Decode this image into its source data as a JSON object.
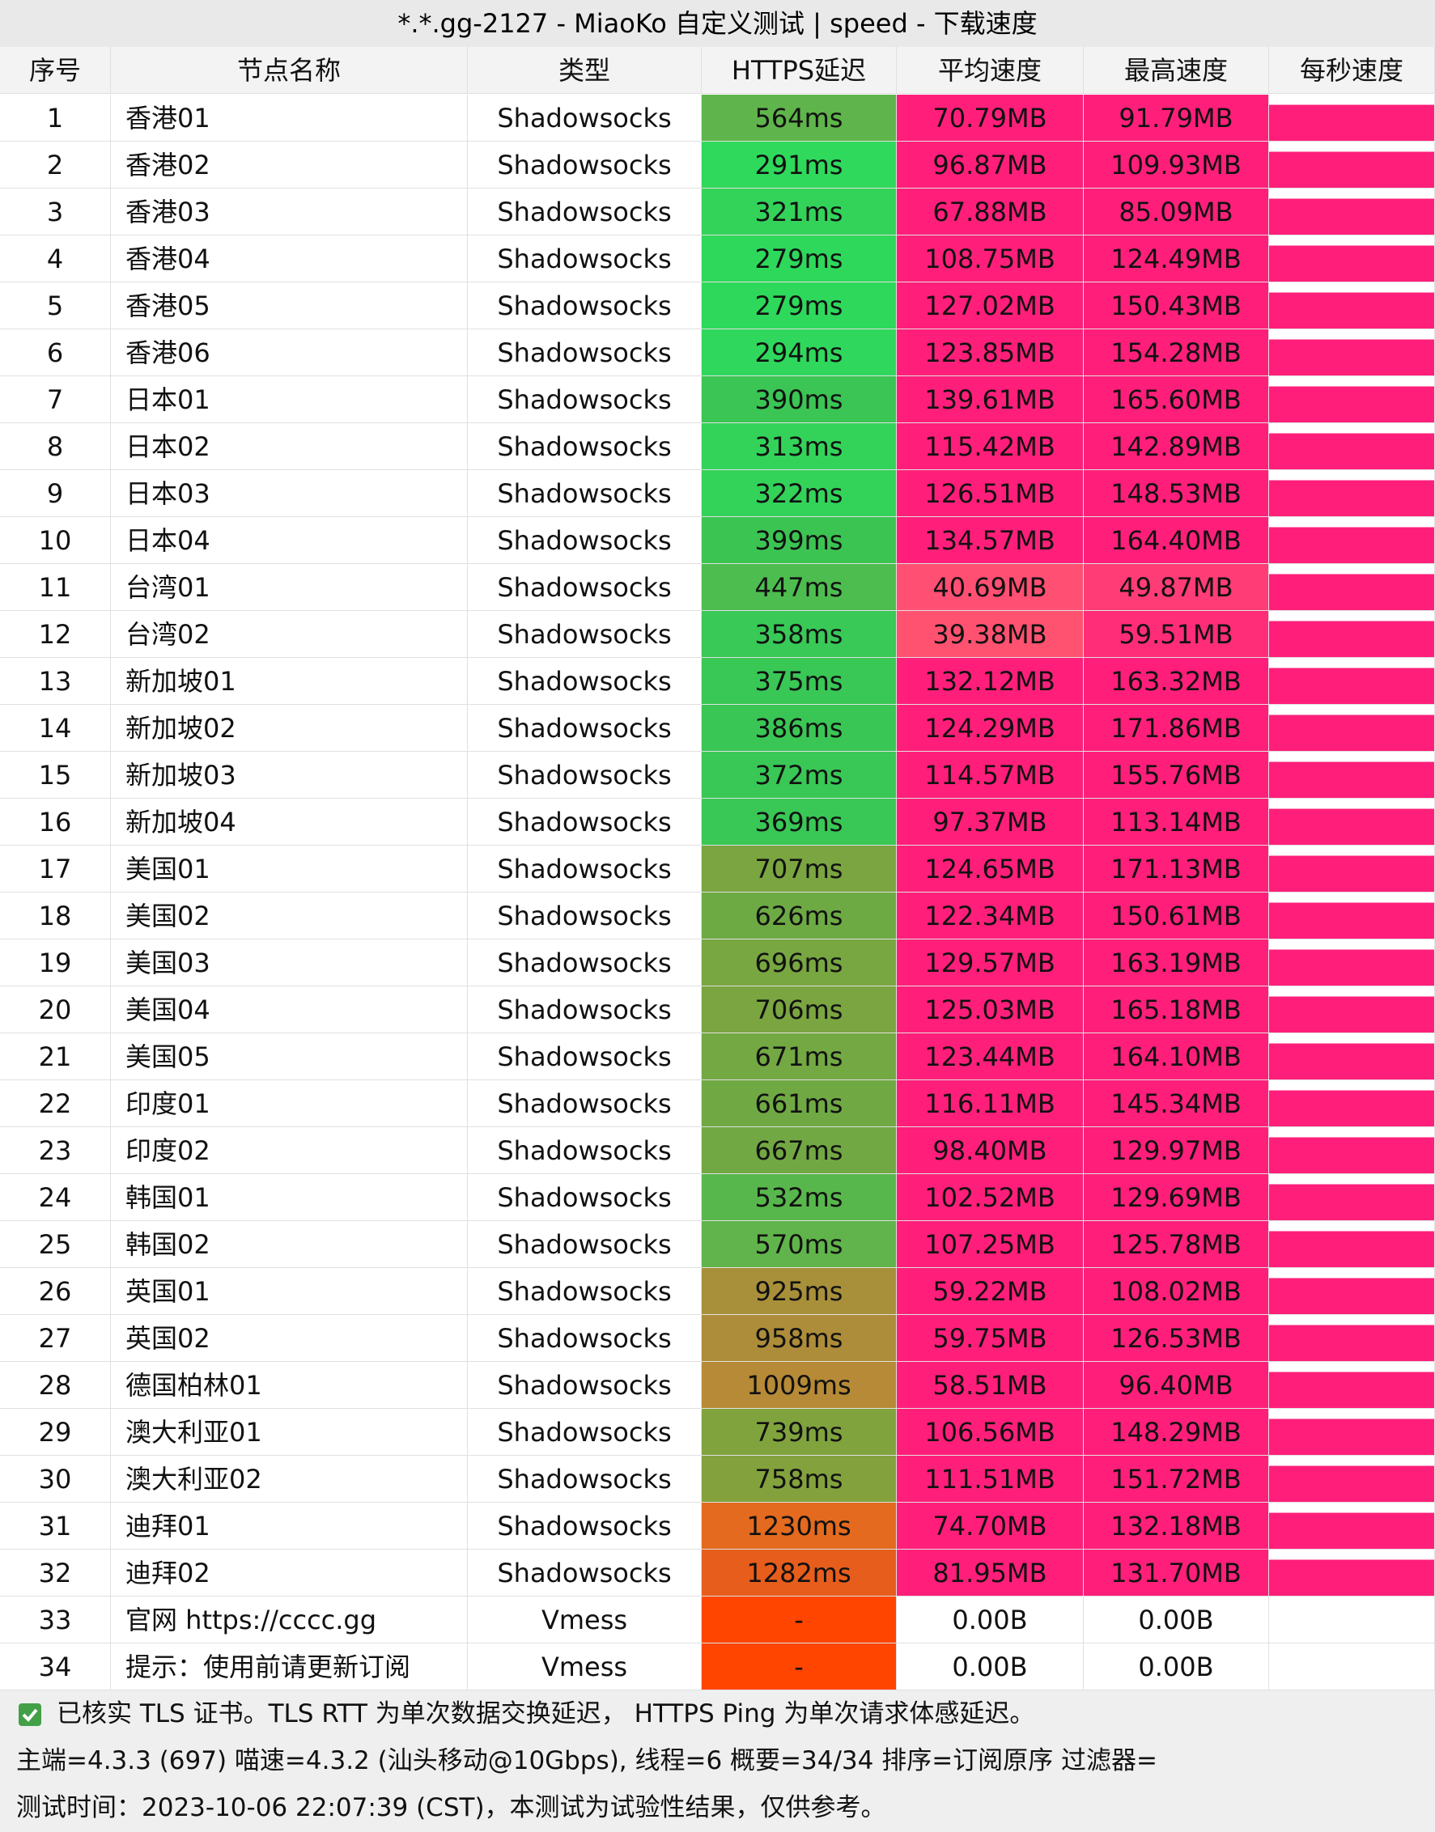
{
  "header": {
    "title": "*.*.gg-2127 - MiaoKo 自定义测试 | speed - 下载速度"
  },
  "table": {
    "columns": [
      "序号",
      "节点名称",
      "类型",
      "HTTPS延迟",
      "平均速度",
      "最高速度",
      "每秒速度"
    ],
    "rows": [
      [
        1,
        "香港01",
        "Shadowsocks",
        "564ms",
        "70.79MB",
        "91.79MB"
      ],
      [
        2,
        "香港02",
        "Shadowsocks",
        "291ms",
        "96.87MB",
        "109.93MB"
      ],
      [
        3,
        "香港03",
        "Shadowsocks",
        "321ms",
        "67.88MB",
        "85.09MB"
      ],
      [
        4,
        "香港04",
        "Shadowsocks",
        "279ms",
        "108.75MB",
        "124.49MB"
      ],
      [
        5,
        "香港05",
        "Shadowsocks",
        "279ms",
        "127.02MB",
        "150.43MB"
      ],
      [
        6,
        "香港06",
        "Shadowsocks",
        "294ms",
        "123.85MB",
        "154.28MB"
      ],
      [
        7,
        "日本01",
        "Shadowsocks",
        "390ms",
        "139.61MB",
        "165.60MB"
      ],
      [
        8,
        "日本02",
        "Shadowsocks",
        "313ms",
        "115.42MB",
        "142.89MB"
      ],
      [
        9,
        "日本03",
        "Shadowsocks",
        "322ms",
        "126.51MB",
        "148.53MB"
      ],
      [
        10,
        "日本04",
        "Shadowsocks",
        "399ms",
        "134.57MB",
        "164.40MB"
      ],
      [
        11,
        "台湾01",
        "Shadowsocks",
        "447ms",
        "40.69MB",
        "49.87MB"
      ],
      [
        12,
        "台湾02",
        "Shadowsocks",
        "358ms",
        "39.38MB",
        "59.51MB"
      ],
      [
        13,
        "新加坡01",
        "Shadowsocks",
        "375ms",
        "132.12MB",
        "163.32MB"
      ],
      [
        14,
        "新加坡02",
        "Shadowsocks",
        "386ms",
        "124.29MB",
        "171.86MB"
      ],
      [
        15,
        "新加坡03",
        "Shadowsocks",
        "372ms",
        "114.57MB",
        "155.76MB"
      ],
      [
        16,
        "新加坡04",
        "Shadowsocks",
        "369ms",
        "97.37MB",
        "113.14MB"
      ],
      [
        17,
        "美国01",
        "Shadowsocks",
        "707ms",
        "124.65MB",
        "171.13MB"
      ],
      [
        18,
        "美国02",
        "Shadowsocks",
        "626ms",
        "122.34MB",
        "150.61MB"
      ],
      [
        19,
        "美国03",
        "Shadowsocks",
        "696ms",
        "129.57MB",
        "163.19MB"
      ],
      [
        20,
        "美国04",
        "Shadowsocks",
        "706ms",
        "125.03MB",
        "165.18MB"
      ],
      [
        21,
        "美国05",
        "Shadowsocks",
        "671ms",
        "123.44MB",
        "164.10MB"
      ],
      [
        22,
        "印度01",
        "Shadowsocks",
        "661ms",
        "116.11MB",
        "145.34MB"
      ],
      [
        23,
        "印度02",
        "Shadowsocks",
        "667ms",
        "98.40MB",
        "129.97MB"
      ],
      [
        24,
        "韩国01",
        "Shadowsocks",
        "532ms",
        "102.52MB",
        "129.69MB"
      ],
      [
        25,
        "韩国02",
        "Shadowsocks",
        "570ms",
        "107.25MB",
        "125.78MB"
      ],
      [
        26,
        "英国01",
        "Shadowsocks",
        "925ms",
        "59.22MB",
        "108.02MB"
      ],
      [
        27,
        "英国02",
        "Shadowsocks",
        "958ms",
        "59.75MB",
        "126.53MB"
      ],
      [
        28,
        "德国柏林01",
        "Shadowsocks",
        "1009ms",
        "58.51MB",
        "96.40MB"
      ],
      [
        29,
        "澳大利亚01",
        "Shadowsocks",
        "739ms",
        "106.56MB",
        "148.29MB"
      ],
      [
        30,
        "澳大利亚02",
        "Shadowsocks",
        "758ms",
        "111.51MB",
        "151.72MB"
      ],
      [
        31,
        "迪拜01",
        "Shadowsocks",
        "1230ms",
        "74.70MB",
        "132.18MB"
      ],
      [
        32,
        "迪拜02",
        "Shadowsocks",
        "1282ms",
        "81.95MB",
        "131.70MB"
      ],
      [
        33,
        "官网 https://cccc.gg",
        "Vmess",
        "-",
        "0.00B",
        "0.00B"
      ],
      [
        34,
        "提示：使用前请更新订阅",
        "Vmess",
        "-",
        "0.00B",
        "0.00B"
      ]
    ],
    "latency_colors": [
      "#5fb54b",
      "#2fd95c",
      "#33d35a",
      "#2ed85b",
      "#2ed85b",
      "#2fd85c",
      "#3ac554",
      "#33d35a",
      "#33d35a",
      "#3cc453",
      "#4ebd50",
      "#38c957",
      "#39c756",
      "#3ac655",
      "#39c756",
      "#39c756",
      "#7aa540",
      "#6daa44",
      "#78a641",
      "#7aa540",
      "#73a843",
      "#70a943",
      "#72a843",
      "#58b74c",
      "#60b44b",
      "#a8903a",
      "#ad8d39",
      "#b68a36",
      "#80a33e",
      "#83a23d",
      "#e36a1e",
      "#e65d1c",
      "#ff4500",
      "#ff4500"
    ],
    "speed_colors": [
      [
        "#ff1f7a",
        "#ff1f7a"
      ],
      [
        "#ff1f7a",
        "#ff1f7a"
      ],
      [
        "#ff1f7a",
        "#ff1f7a"
      ],
      [
        "#ff1f7a",
        "#ff1f7a"
      ],
      [
        "#ff1f7a",
        "#ff1f7a"
      ],
      [
        "#ff1f7a",
        "#ff1f7a"
      ],
      [
        "#ff1f7a",
        "#ff1f7a"
      ],
      [
        "#ff1f7a",
        "#ff1f7a"
      ],
      [
        "#ff1f7a",
        "#ff1f7a"
      ],
      [
        "#ff1f7a",
        "#ff1f7a"
      ],
      [
        "#ff4f72",
        "#ff3c76"
      ],
      [
        "#ff5270",
        "#ff2c78"
      ],
      [
        "#ff1f7a",
        "#ff1f7a"
      ],
      [
        "#ff1f7a",
        "#ff1f7a"
      ],
      [
        "#ff1f7a",
        "#ff1f7a"
      ],
      [
        "#ff1f7a",
        "#ff1f7a"
      ],
      [
        "#ff1f7a",
        "#ff1f7a"
      ],
      [
        "#ff1f7a",
        "#ff1f7a"
      ],
      [
        "#ff1f7a",
        "#ff1f7a"
      ],
      [
        "#ff1f7a",
        "#ff1f7a"
      ],
      [
        "#ff1f7a",
        "#ff1f7a"
      ],
      [
        "#ff1f7a",
        "#ff1f7a"
      ],
      [
        "#ff1f7a",
        "#ff1f7a"
      ],
      [
        "#ff1f7a",
        "#ff1f7a"
      ],
      [
        "#ff1f7a",
        "#ff1f7a"
      ],
      [
        "#ff1f7a",
        "#ff1f7a"
      ],
      [
        "#ff1f7a",
        "#ff1f7a"
      ],
      [
        "#ff1f7a",
        "#ff1f7a"
      ],
      [
        "#ff1f7a",
        "#ff1f7a"
      ],
      [
        "#ff1f7a",
        "#ff1f7a"
      ],
      [
        "#ff1f7a",
        "#ff1f7a"
      ],
      [
        "#ff1f7a",
        "#ff1f7a"
      ],
      [
        "#ffffff",
        "#ffffff"
      ],
      [
        "#ffffff",
        "#ffffff"
      ]
    ]
  },
  "footer": {
    "lines": [
      "已核实 TLS 证书。TLS RTT 为单次数据交换延迟， HTTPS Ping 为单次请求体感延迟。",
      "主端=4.3.3 (697) 喵速=4.3.2 (汕头移动@10Gbps), 线程=6 概要=34/34 排序=订阅原序 过滤器=",
      "测试时间：2023-10-06 22:07:39 (CST)，本测试为试验性结果，仅供参考。"
    ]
  }
}
